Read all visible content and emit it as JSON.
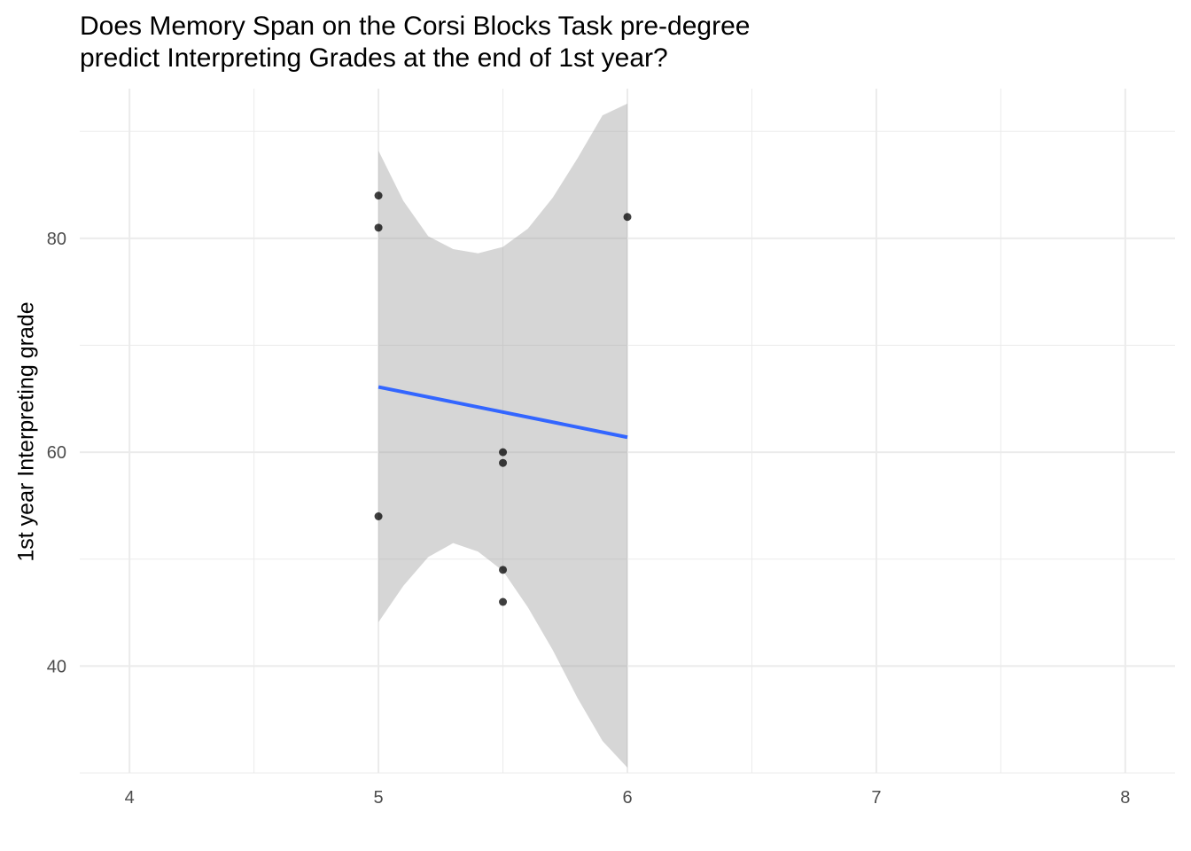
{
  "chart_data": {
    "type": "scatter",
    "title_lines": [
      "Does Memory Span on the Corsi Blocks Task pre-degree",
      "predict Interpreting Grades at the end of 1st year?"
    ],
    "xlabel": "",
    "ylabel": "1st year Interpreting grade",
    "xlim": [
      3.8,
      8.2
    ],
    "ylim": [
      30,
      94
    ],
    "x_ticks": [
      4,
      5,
      6,
      7,
      8
    ],
    "y_ticks": [
      40,
      60,
      80
    ],
    "grid": true,
    "points": [
      {
        "x": 5,
        "y": 84
      },
      {
        "x": 5,
        "y": 81
      },
      {
        "x": 5,
        "y": 54
      },
      {
        "x": 5.5,
        "y": 60
      },
      {
        "x": 5.5,
        "y": 59
      },
      {
        "x": 5.5,
        "y": 49
      },
      {
        "x": 5.5,
        "y": 46
      },
      {
        "x": 6,
        "y": 82
      }
    ],
    "fit_line": {
      "x": [
        5,
        6
      ],
      "y": [
        66.1,
        61.4
      ],
      "color": "#3366FF"
    },
    "confidence_band": {
      "x": [
        5.0,
        5.1,
        5.2,
        5.3,
        5.4,
        5.5,
        5.6,
        5.7,
        5.8,
        5.9,
        6.0
      ],
      "upper": [
        88.2,
        83.5,
        80.2,
        79.0,
        78.6,
        79.2,
        80.9,
        83.8,
        87.5,
        91.5,
        92.6
      ],
      "lower": [
        44.1,
        47.5,
        50.2,
        51.5,
        50.7,
        48.9,
        45.5,
        41.5,
        37.0,
        33.0,
        30.5
      ]
    },
    "colors": {
      "points": "#000000",
      "band": "#999999",
      "grid": "#ebebeb"
    }
  }
}
